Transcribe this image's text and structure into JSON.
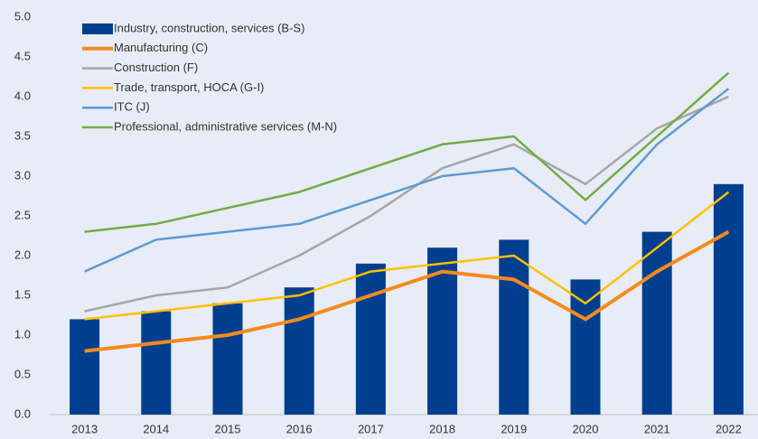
{
  "chart_data": {
    "type": "bar_line",
    "categories": [
      "2013",
      "2014",
      "2015",
      "2016",
      "2017",
      "2018",
      "2019",
      "2020",
      "2021",
      "2022"
    ],
    "series": [
      {
        "name": "Industry, construction, services (B-S)",
        "type": "bar",
        "color": "#003f8f",
        "values": [
          1.2,
          1.3,
          1.4,
          1.6,
          1.9,
          2.1,
          2.2,
          1.7,
          2.3,
          2.9
        ]
      },
      {
        "name": "Manufacturing (C)",
        "type": "line",
        "color": "#f58a1f",
        "values": [
          0.8,
          0.9,
          1.0,
          1.2,
          1.5,
          1.8,
          1.7,
          1.2,
          1.8,
          2.3
        ]
      },
      {
        "name": "Construction (F)",
        "type": "line",
        "color": "#a6a6a6",
        "values": [
          1.3,
          1.5,
          1.6,
          2.0,
          2.5,
          3.1,
          3.4,
          2.9,
          3.6,
          4.0
        ]
      },
      {
        "name": "Trade, transport, HOCA (G-I)",
        "type": "line",
        "color": "#ffc000",
        "values": [
          1.2,
          1.3,
          1.4,
          1.5,
          1.8,
          1.9,
          2.0,
          1.4,
          2.1,
          2.8
        ]
      },
      {
        "name": "ITC (J)",
        "type": "line",
        "color": "#5b9bd5",
        "values": [
          1.8,
          2.2,
          2.3,
          2.4,
          2.7,
          3.0,
          3.1,
          2.4,
          3.4,
          4.1
        ]
      },
      {
        "name": "Professional, administrative services (M-N)",
        "type": "line",
        "color": "#70ad47",
        "values": [
          2.3,
          2.4,
          2.6,
          2.8,
          3.1,
          3.4,
          3.5,
          2.7,
          3.5,
          4.3
        ]
      }
    ],
    "ylim": [
      0,
      5
    ],
    "yticks": [
      {
        "value": 0,
        "label": "0.0"
      },
      {
        "value": 0.5,
        "label": "0.5"
      },
      {
        "value": 1,
        "label": "1.0"
      },
      {
        "value": 1.5,
        "label": "1.5"
      },
      {
        "value": 2,
        "label": "2.0"
      },
      {
        "value": 2.5,
        "label": "2.5"
      },
      {
        "value": 3,
        "label": "3.0"
      },
      {
        "value": 3.5,
        "label": "3.5"
      },
      {
        "value": 4,
        "label": "4.0"
      },
      {
        "value": 4.5,
        "label": "4.5"
      },
      {
        "value": 5,
        "label": "5.0"
      }
    ],
    "grid": false,
    "legend": "top-left"
  }
}
